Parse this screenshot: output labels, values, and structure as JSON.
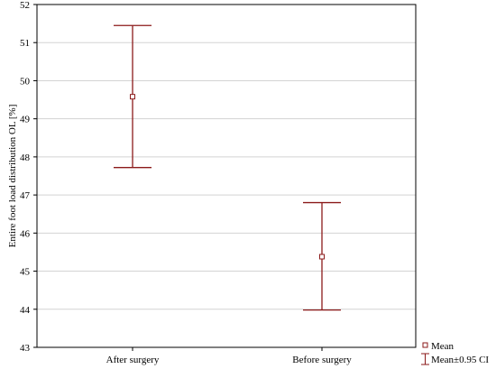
{
  "chart_data": {
    "type": "errorbar",
    "title": "",
    "xlabel": "",
    "ylabel": "Entire foot load distribution OL [%]",
    "ylim": [
      43,
      52
    ],
    "yticks": [
      43,
      44,
      45,
      46,
      47,
      48,
      49,
      50,
      51,
      52
    ],
    "grid": true,
    "categories": [
      "After surgery",
      "Before surgery"
    ],
    "series": [
      {
        "mean": [
          49.58,
          45.38
        ],
        "ci_lower": [
          47.72,
          43.98
        ],
        "ci_upper": [
          51.45,
          46.8
        ]
      }
    ],
    "legend": {
      "placement": "bottom-right",
      "entries": [
        "Mean",
        "Mean±0.95 CI"
      ]
    },
    "colors": {
      "series": "#8b1a1a",
      "grid": "#d3d3d3",
      "axis": "#000000"
    }
  }
}
